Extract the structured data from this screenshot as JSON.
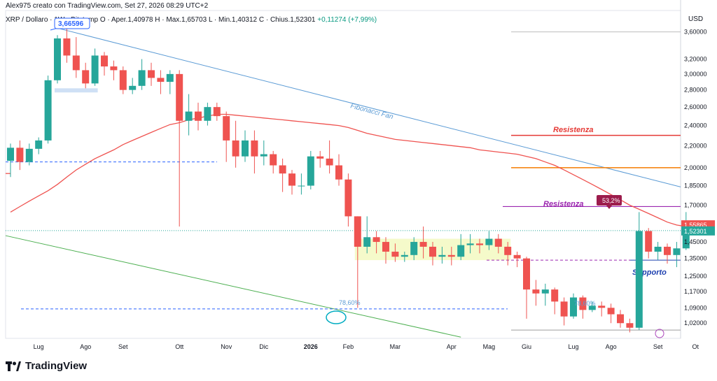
{
  "header": {
    "caption": "Alex975 creato con TradingView.com, Set 27, 2026 08:29 UTC+2",
    "legend": "XRP / Dollaro · 1W · Bitstamp  O",
    "ohlc": "· Aper.1,40978  H · Max.1,65703  L · Min.1,40312  C · Chius.1,52301",
    "change": "+0,11274 (+7,99%)"
  },
  "brand": "TradingView",
  "currency": "USD",
  "chart_data": {
    "type": "candlestick",
    "scale": "log",
    "ylim": [
      0.955,
      3.95
    ],
    "y_ticks": [
      "3,60000",
      "3,20000",
      "3,00000",
      "2,80000",
      "2,60000",
      "2,40000",
      "2,20000",
      "2,00000",
      "1,85000",
      "1,70000",
      "1,45000",
      "1,35000",
      "1,25000",
      "1,17000",
      "1,09000",
      "1,02000"
    ],
    "y_tick_values": [
      3.6,
      3.2,
      3.0,
      2.8,
      2.6,
      2.4,
      2.2,
      2.0,
      1.85,
      1.7,
      1.45,
      1.35,
      1.25,
      1.17,
      1.09,
      1.02
    ],
    "x_ticks": [
      "Lug",
      "Ago",
      "Set",
      "Ott",
      "Nov",
      "Dic",
      "2026",
      "Feb",
      "Mar",
      "Apr",
      "Mag",
      "Giu",
      "Lug",
      "Ago",
      "Set",
      "Ot"
    ],
    "x_tick_weeks": [
      3,
      8,
      12,
      18,
      23,
      27,
      32,
      36,
      41,
      47,
      51,
      55,
      60,
      64,
      69,
      73
    ],
    "colors": {
      "up": "#26a69a",
      "down": "#ef5350",
      "ma": "#ef5350",
      "fan": "#5b9bd5",
      "channel": "#4caf50",
      "res_red": "#e53935",
      "res_orange": "#f57c00",
      "res_purple": "#9c27b0",
      "support": "#1e40af",
      "blue_dash": "#2962ff",
      "box": "#f4f9c4"
    },
    "candles": [
      [
        2.06,
        2.18,
        1.92,
        2.22
      ],
      [
        2.18,
        2.05,
        1.98,
        2.25
      ],
      [
        2.05,
        2.17,
        2.02,
        2.22
      ],
      [
        2.17,
        2.25,
        2.12,
        2.28
      ],
      [
        2.25,
        2.92,
        2.22,
        2.98
      ],
      [
        2.92,
        3.5,
        2.88,
        3.55
      ],
      [
        3.5,
        3.25,
        3.15,
        3.66
      ],
      [
        3.25,
        3.05,
        2.95,
        3.52
      ],
      [
        3.05,
        2.88,
        2.82,
        3.15
      ],
      [
        2.88,
        3.25,
        2.85,
        3.35
      ],
      [
        3.25,
        3.1,
        2.98,
        3.3
      ],
      [
        3.1,
        3.05,
        2.92,
        3.18
      ],
      [
        3.05,
        2.8,
        2.75,
        3.1
      ],
      [
        2.8,
        2.85,
        2.75,
        2.95
      ],
      [
        2.85,
        3.05,
        2.8,
        3.2
      ],
      [
        3.05,
        2.95,
        2.85,
        3.15
      ],
      [
        2.95,
        2.9,
        2.75,
        3.05
      ],
      [
        2.9,
        3.0,
        2.75,
        3.05
      ],
      [
        3.0,
        2.45,
        1.55,
        3.05
      ],
      [
        2.45,
        2.55,
        2.3,
        2.75
      ],
      [
        2.55,
        2.45,
        2.35,
        2.65
      ],
      [
        2.45,
        2.6,
        2.4,
        2.65
      ],
      [
        2.6,
        2.5,
        2.45,
        2.65
      ],
      [
        2.5,
        2.25,
        2.05,
        2.55
      ],
      [
        2.25,
        2.1,
        2.0,
        2.45
      ],
      [
        2.1,
        2.25,
        2.05,
        2.35
      ],
      [
        2.25,
        2.1,
        1.95,
        2.35
      ],
      [
        2.1,
        2.12,
        2.02,
        2.25
      ],
      [
        2.12,
        2.02,
        1.95,
        2.15
      ],
      [
        2.02,
        1.95,
        1.8,
        2.08
      ],
      [
        1.95,
        1.85,
        1.78,
        1.98
      ],
      [
        1.85,
        1.85,
        1.78,
        1.95
      ],
      [
        1.85,
        2.1,
        1.82,
        2.15
      ],
      [
        2.1,
        2.08,
        2.0,
        2.15
      ],
      [
        2.08,
        2.02,
        1.95,
        2.25
      ],
      [
        2.02,
        1.9,
        1.85,
        2.12
      ],
      [
        1.9,
        1.62,
        1.55,
        1.95
      ],
      [
        1.62,
        1.42,
        1.09,
        1.62
      ],
      [
        1.42,
        1.48,
        1.38,
        1.62
      ],
      [
        1.48,
        1.45,
        1.38,
        1.52
      ],
      [
        1.45,
        1.39,
        1.32,
        1.48
      ],
      [
        1.39,
        1.36,
        1.33,
        1.44
      ],
      [
        1.36,
        1.37,
        1.33,
        1.39
      ],
      [
        1.37,
        1.45,
        1.34,
        1.48
      ],
      [
        1.45,
        1.42,
        1.35,
        1.55
      ],
      [
        1.42,
        1.36,
        1.31,
        1.45
      ],
      [
        1.36,
        1.37,
        1.32,
        1.42
      ],
      [
        1.37,
        1.36,
        1.31,
        1.42
      ],
      [
        1.36,
        1.43,
        1.34,
        1.5
      ],
      [
        1.43,
        1.44,
        1.38,
        1.5
      ],
      [
        1.44,
        1.43,
        1.38,
        1.47
      ],
      [
        1.43,
        1.47,
        1.4,
        1.52
      ],
      [
        1.47,
        1.42,
        1.38,
        1.5
      ],
      [
        1.42,
        1.37,
        1.31,
        1.45
      ],
      [
        1.37,
        1.35,
        1.3,
        1.39
      ],
      [
        1.35,
        1.18,
        1.04,
        1.36
      ],
      [
        1.18,
        1.16,
        1.1,
        1.23
      ],
      [
        1.16,
        1.18,
        1.1,
        1.21
      ],
      [
        1.18,
        1.12,
        1.06,
        1.19
      ],
      [
        1.12,
        1.05,
        1.01,
        1.14
      ],
      [
        1.05,
        1.14,
        1.04,
        1.16
      ],
      [
        1.14,
        1.08,
        1.04,
        1.15
      ],
      [
        1.08,
        1.1,
        1.07,
        1.12
      ],
      [
        1.1,
        1.09,
        1.05,
        1.12
      ],
      [
        1.09,
        1.06,
        1.02,
        1.11
      ],
      [
        1.06,
        1.02,
        1.0,
        1.08
      ],
      [
        1.02,
        1.0,
        0.98,
        1.04
      ],
      [
        1.0,
        1.52,
        0.99,
        1.65
      ],
      [
        1.52,
        1.39,
        1.35,
        1.54
      ],
      [
        1.39,
        1.42,
        1.34,
        1.45
      ],
      [
        1.42,
        1.37,
        1.32,
        1.44
      ],
      [
        1.37,
        1.41,
        1.3,
        1.45
      ],
      [
        1.41,
        1.52,
        1.4,
        1.65
      ]
    ],
    "ma": [
      1.65,
      1.69,
      1.73,
      1.77,
      1.81,
      1.86,
      1.92,
      1.98,
      2.03,
      2.08,
      2.12,
      2.16,
      2.21,
      2.25,
      2.29,
      2.33,
      2.37,
      2.41,
      2.43,
      2.46,
      2.48,
      2.5,
      2.52,
      2.52,
      2.51,
      2.5,
      2.49,
      2.48,
      2.47,
      2.46,
      2.45,
      2.44,
      2.43,
      2.42,
      2.41,
      2.4,
      2.38,
      2.35,
      2.32,
      2.3,
      2.28,
      2.26,
      2.25,
      2.24,
      2.23,
      2.22,
      2.21,
      2.2,
      2.19,
      2.18,
      2.16,
      2.15,
      2.14,
      2.13,
      2.12,
      2.1,
      2.08,
      2.05,
      2.02,
      1.98,
      1.94,
      1.9,
      1.86,
      1.82,
      1.78,
      1.74,
      1.7,
      1.67,
      1.64,
      1.61,
      1.58,
      1.56,
      1.55
    ],
    "levels": {
      "high_marker": "3,66596",
      "resistance_label": "Resistenza",
      "support_label": "Supporto",
      "fan_label": "Fibonacci Fan",
      "fib_left": "78,60%",
      "fib_right": "78,60%",
      "pct_badge": "53,2%",
      "price_red": "1,55865",
      "price_last": "1,52301"
    }
  }
}
